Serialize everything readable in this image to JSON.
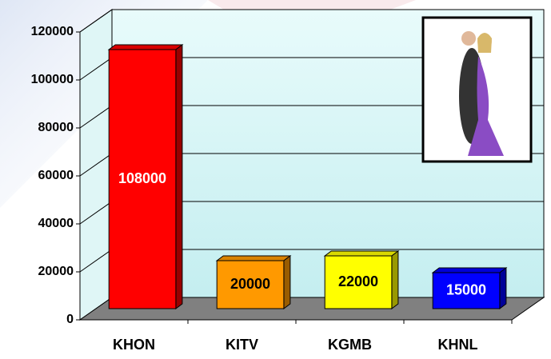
{
  "chart_data": {
    "type": "bar3d",
    "categories": [
      "KHON",
      "KITV",
      "KGMB",
      "KHNL"
    ],
    "values": [
      108000,
      20000,
      22000,
      15000
    ],
    "colors": [
      "#ff0000",
      "#ff9900",
      "#ffff00",
      "#0000ff"
    ],
    "ylim": [
      0,
      120000
    ],
    "yticks": [
      0,
      20000,
      40000,
      60000,
      80000,
      100000,
      120000
    ],
    "grid": true
  }
}
